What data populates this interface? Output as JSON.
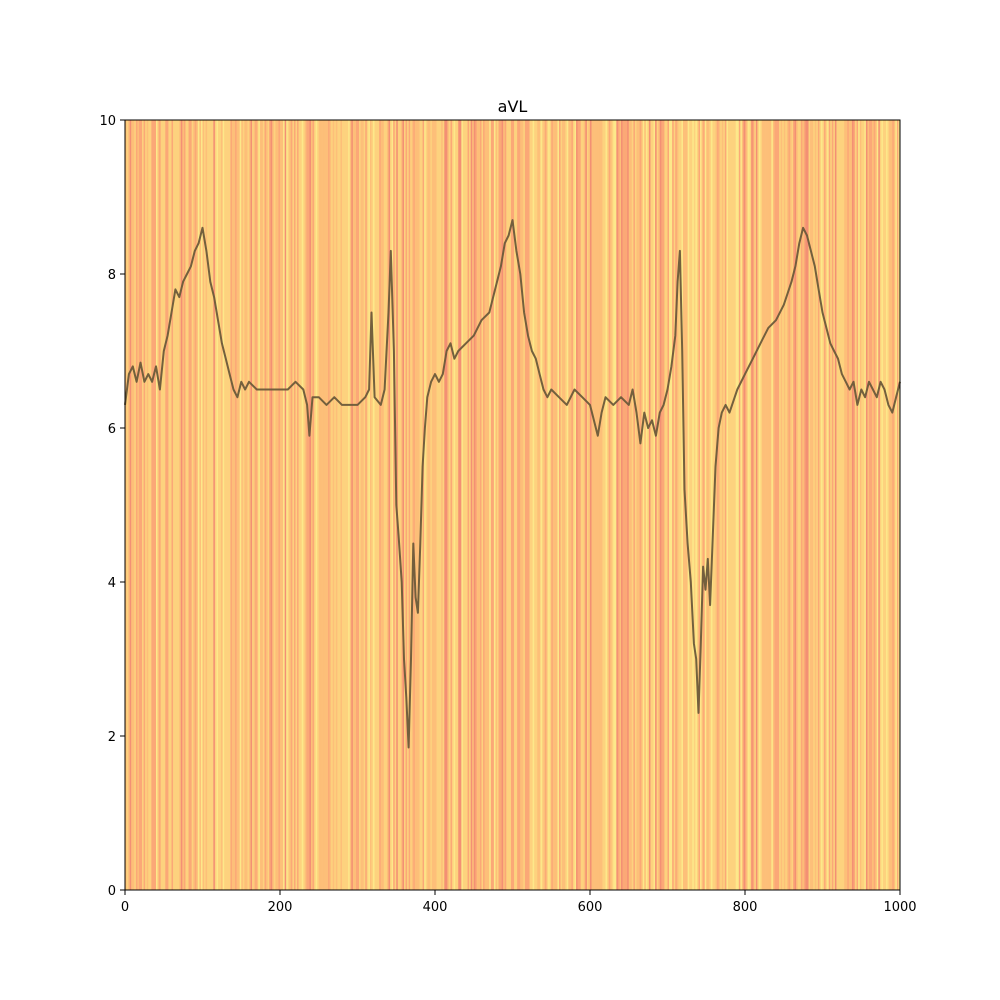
{
  "chart_data": {
    "type": "line",
    "title": "aVL",
    "xlabel": "",
    "ylabel": "",
    "xlim": [
      0,
      1000
    ],
    "ylim": [
      0,
      10
    ],
    "x_ticks": [
      0,
      200,
      400,
      600,
      800,
      1000
    ],
    "x_tick_labels": [
      "0",
      "200",
      "400",
      "600",
      "800",
      "1000"
    ],
    "y_ticks": [
      0,
      2,
      4,
      6,
      8,
      10
    ],
    "y_tick_labels": [
      "0",
      "2",
      "4",
      "6",
      "8",
      "10"
    ],
    "grid": false,
    "background_heatmap": {
      "description": "vertical colored bands (attribution-style) spanning full height, orange/yellow/red tones",
      "colormap": [
        "#fde88a",
        "#fdd27e",
        "#fdbf79",
        "#fba877",
        "#f39074"
      ]
    },
    "series": [
      {
        "color": "#6b5a3a",
        "points": [
          [
            0,
            6.3
          ],
          [
            5,
            6.7
          ],
          [
            10,
            6.8
          ],
          [
            15,
            6.6
          ],
          [
            20,
            6.85
          ],
          [
            25,
            6.6
          ],
          [
            30,
            6.7
          ],
          [
            35,
            6.6
          ],
          [
            40,
            6.8
          ],
          [
            45,
            6.5
          ],
          [
            50,
            7.0
          ],
          [
            55,
            7.2
          ],
          [
            60,
            7.5
          ],
          [
            65,
            7.8
          ],
          [
            70,
            7.7
          ],
          [
            75,
            7.9
          ],
          [
            80,
            8.0
          ],
          [
            85,
            8.1
          ],
          [
            90,
            8.3
          ],
          [
            95,
            8.4
          ],
          [
            100,
            8.6
          ],
          [
            105,
            8.3
          ],
          [
            110,
            7.9
          ],
          [
            115,
            7.7
          ],
          [
            120,
            7.4
          ],
          [
            125,
            7.1
          ],
          [
            130,
            6.9
          ],
          [
            135,
            6.7
          ],
          [
            140,
            6.5
          ],
          [
            145,
            6.4
          ],
          [
            150,
            6.6
          ],
          [
            155,
            6.5
          ],
          [
            160,
            6.6
          ],
          [
            170,
            6.5
          ],
          [
            180,
            6.5
          ],
          [
            190,
            6.5
          ],
          [
            200,
            6.5
          ],
          [
            210,
            6.5
          ],
          [
            220,
            6.6
          ],
          [
            230,
            6.5
          ],
          [
            235,
            6.3
          ],
          [
            238,
            5.9
          ],
          [
            242,
            6.4
          ],
          [
            250,
            6.4
          ],
          [
            260,
            6.3
          ],
          [
            270,
            6.4
          ],
          [
            280,
            6.3
          ],
          [
            290,
            6.3
          ],
          [
            300,
            6.3
          ],
          [
            310,
            6.4
          ],
          [
            315,
            6.5
          ],
          [
            318,
            7.5
          ],
          [
            322,
            6.4
          ],
          [
            330,
            6.3
          ],
          [
            335,
            6.5
          ],
          [
            340,
            7.5
          ],
          [
            343,
            8.3
          ],
          [
            347,
            7.0
          ],
          [
            350,
            5.0
          ],
          [
            353,
            4.6
          ],
          [
            357,
            4.0
          ],
          [
            360,
            3.0
          ],
          [
            363,
            2.5
          ],
          [
            366,
            1.85
          ],
          [
            369,
            3.0
          ],
          [
            372,
            4.5
          ],
          [
            375,
            3.8
          ],
          [
            378,
            3.6
          ],
          [
            381,
            4.5
          ],
          [
            384,
            5.5
          ],
          [
            387,
            6.0
          ],
          [
            390,
            6.4
          ],
          [
            395,
            6.6
          ],
          [
            400,
            6.7
          ],
          [
            405,
            6.6
          ],
          [
            410,
            6.7
          ],
          [
            415,
            7.0
          ],
          [
            420,
            7.1
          ],
          [
            425,
            6.9
          ],
          [
            430,
            7.0
          ],
          [
            440,
            7.1
          ],
          [
            450,
            7.2
          ],
          [
            460,
            7.4
          ],
          [
            470,
            7.5
          ],
          [
            480,
            7.9
          ],
          [
            485,
            8.1
          ],
          [
            490,
            8.4
          ],
          [
            495,
            8.5
          ],
          [
            500,
            8.7
          ],
          [
            505,
            8.3
          ],
          [
            510,
            8.0
          ],
          [
            515,
            7.5
          ],
          [
            520,
            7.2
          ],
          [
            525,
            7.0
          ],
          [
            530,
            6.9
          ],
          [
            535,
            6.7
          ],
          [
            540,
            6.5
          ],
          [
            545,
            6.4
          ],
          [
            550,
            6.5
          ],
          [
            560,
            6.4
          ],
          [
            570,
            6.3
          ],
          [
            580,
            6.5
          ],
          [
            590,
            6.4
          ],
          [
            600,
            6.3
          ],
          [
            605,
            6.1
          ],
          [
            610,
            5.9
          ],
          [
            615,
            6.2
          ],
          [
            620,
            6.4
          ],
          [
            630,
            6.3
          ],
          [
            640,
            6.4
          ],
          [
            650,
            6.3
          ],
          [
            655,
            6.5
          ],
          [
            660,
            6.2
          ],
          [
            665,
            5.8
          ],
          [
            670,
            6.2
          ],
          [
            675,
            6.0
          ],
          [
            680,
            6.1
          ],
          [
            685,
            5.9
          ],
          [
            690,
            6.2
          ],
          [
            695,
            6.3
          ],
          [
            700,
            6.5
          ],
          [
            705,
            6.8
          ],
          [
            710,
            7.2
          ],
          [
            713,
            7.9
          ],
          [
            716,
            8.3
          ],
          [
            719,
            7.0
          ],
          [
            722,
            5.2
          ],
          [
            726,
            4.5
          ],
          [
            730,
            4.0
          ],
          [
            734,
            3.2
          ],
          [
            737,
            3.0
          ],
          [
            740,
            2.3
          ],
          [
            743,
            3.2
          ],
          [
            746,
            4.2
          ],
          [
            749,
            3.9
          ],
          [
            752,
            4.3
          ],
          [
            755,
            3.7
          ],
          [
            758,
            4.5
          ],
          [
            762,
            5.5
          ],
          [
            766,
            6.0
          ],
          [
            770,
            6.2
          ],
          [
            775,
            6.3
          ],
          [
            780,
            6.2
          ],
          [
            790,
            6.5
          ],
          [
            800,
            6.7
          ],
          [
            810,
            6.9
          ],
          [
            820,
            7.1
          ],
          [
            830,
            7.3
          ],
          [
            840,
            7.4
          ],
          [
            850,
            7.6
          ],
          [
            860,
            7.9
          ],
          [
            865,
            8.1
          ],
          [
            870,
            8.4
          ],
          [
            875,
            8.6
          ],
          [
            880,
            8.5
          ],
          [
            885,
            8.3
          ],
          [
            890,
            8.1
          ],
          [
            895,
            7.8
          ],
          [
            900,
            7.5
          ],
          [
            905,
            7.3
          ],
          [
            910,
            7.1
          ],
          [
            915,
            7.0
          ],
          [
            920,
            6.9
          ],
          [
            925,
            6.7
          ],
          [
            930,
            6.6
          ],
          [
            935,
            6.5
          ],
          [
            940,
            6.6
          ],
          [
            945,
            6.3
          ],
          [
            950,
            6.5
          ],
          [
            955,
            6.4
          ],
          [
            960,
            6.6
          ],
          [
            965,
            6.5
          ],
          [
            970,
            6.4
          ],
          [
            975,
            6.6
          ],
          [
            980,
            6.5
          ],
          [
            985,
            6.3
          ],
          [
            990,
            6.2
          ],
          [
            995,
            6.4
          ],
          [
            1000,
            6.6
          ]
        ]
      }
    ]
  }
}
